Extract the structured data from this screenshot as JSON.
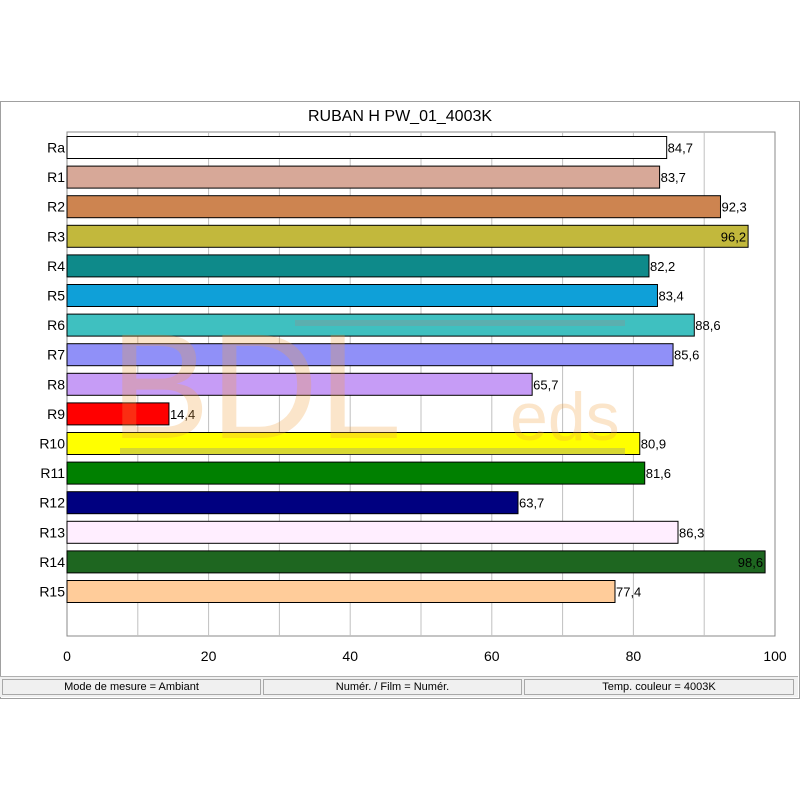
{
  "chart_data": {
    "type": "bar",
    "orientation": "horizontal",
    "title": "RUBAN H PW_01_4003K",
    "categories": [
      "Ra",
      "R1",
      "R2",
      "R3",
      "R4",
      "R5",
      "R6",
      "R7",
      "R8",
      "R9",
      "R10",
      "R11",
      "R12",
      "R13",
      "R14",
      "R15"
    ],
    "values": [
      84.7,
      83.7,
      92.3,
      96.2,
      82.2,
      83.4,
      88.6,
      85.6,
      65.7,
      14.4,
      80.9,
      81.6,
      63.7,
      86.3,
      98.6,
      77.4
    ],
    "value_labels": [
      "84,7",
      "83,7",
      "92,3",
      "96,2",
      "82,2",
      "83,4",
      "88,6",
      "85,6",
      "65,7",
      "14,4",
      "80,9",
      "81,6",
      "63,7",
      "86,3",
      "98,6",
      "77,4"
    ],
    "colors": [
      "#ffffff",
      "#d7a898",
      "#cd8450",
      "#c2b83c",
      "#0e8a8a",
      "#0fa0d8",
      "#3fc0c0",
      "#9090f8",
      "#c69cf6",
      "#ff0000",
      "#ffff00",
      "#008000",
      "#000080",
      "#ffeeff",
      "#1e6620",
      "#ffcc9a"
    ],
    "xlim": [
      0,
      100
    ],
    "xticks": [
      "0",
      "20",
      "40",
      "60",
      "80",
      "100"
    ],
    "grid": "vertical",
    "xlabel": "",
    "ylabel": ""
  },
  "status_bar": {
    "mode": "Mode de mesure = Ambiant",
    "numer": "Numér. / Film = Numér.",
    "temp": "Temp. couleur = 4003K"
  },
  "watermark": {
    "main": "BDL",
    "suffix": "eds"
  }
}
